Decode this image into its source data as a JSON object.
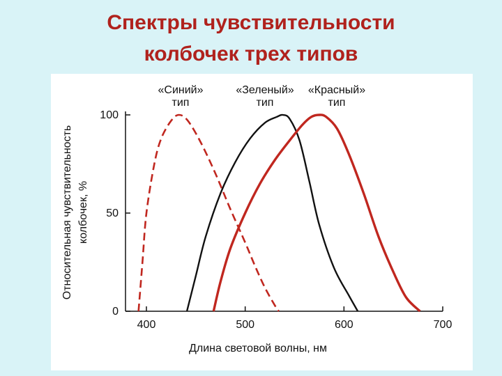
{
  "slide": {
    "title_line1": "Спектры чувствительности",
    "title_line2": "колбочек трех типов"
  },
  "colors": {
    "background": "#d9f3f7",
    "title": "#b0221d",
    "blue_cone": "#c0271f",
    "green_cone": "#111111",
    "red_cone": "#c0271f"
  },
  "chart_data": {
    "type": "line",
    "title": "",
    "xlabel": "Длина световой волны, нм",
    "ylabel_line1": "Относительная чувствительность",
    "ylabel_line2": "колбочек, %",
    "xlim": [
      380,
      700
    ],
    "ylim": [
      0,
      100
    ],
    "x_ticks": [
      400,
      500,
      600,
      700
    ],
    "y_ticks": [
      0,
      50,
      100
    ],
    "grid": false,
    "series": [
      {
        "name_line1": "«Синий»",
        "name_line2": "тип",
        "style": "dashed",
        "color": "#c0271f",
        "points": [
          [
            392,
            0
          ],
          [
            396,
            25
          ],
          [
            400,
            50
          ],
          [
            408,
            75
          ],
          [
            415,
            88
          ],
          [
            425,
            97
          ],
          [
            433,
            100
          ],
          [
            442,
            97
          ],
          [
            455,
            86
          ],
          [
            470,
            70
          ],
          [
            485,
            52
          ],
          [
            500,
            35
          ],
          [
            510,
            23
          ],
          [
            520,
            12
          ],
          [
            530,
            3
          ],
          [
            534,
            0
          ]
        ]
      },
      {
        "name_line1": "«Зеленый»",
        "name_line2": "тип",
        "style": "solid",
        "color": "#111111",
        "points": [
          [
            441,
            0
          ],
          [
            450,
            18
          ],
          [
            460,
            38
          ],
          [
            475,
            60
          ],
          [
            490,
            76
          ],
          [
            505,
            88
          ],
          [
            520,
            96
          ],
          [
            532,
            99
          ],
          [
            538,
            100
          ],
          [
            545,
            98
          ],
          [
            555,
            87
          ],
          [
            565,
            66
          ],
          [
            575,
            44
          ],
          [
            590,
            22
          ],
          [
            605,
            8
          ],
          [
            614,
            0
          ]
        ]
      },
      {
        "name_line1": "«Красный»",
        "name_line2": "тип",
        "style": "solid",
        "color": "#c0271f",
        "points": [
          [
            468,
            0
          ],
          [
            475,
            15
          ],
          [
            485,
            32
          ],
          [
            500,
            50
          ],
          [
            515,
            65
          ],
          [
            530,
            77
          ],
          [
            545,
            87
          ],
          [
            558,
            95
          ],
          [
            567,
            99
          ],
          [
            575,
            100
          ],
          [
            582,
            99
          ],
          [
            593,
            93
          ],
          [
            605,
            80
          ],
          [
            620,
            60
          ],
          [
            635,
            38
          ],
          [
            650,
            20
          ],
          [
            663,
            7
          ],
          [
            677,
            0
          ]
        ]
      }
    ]
  }
}
